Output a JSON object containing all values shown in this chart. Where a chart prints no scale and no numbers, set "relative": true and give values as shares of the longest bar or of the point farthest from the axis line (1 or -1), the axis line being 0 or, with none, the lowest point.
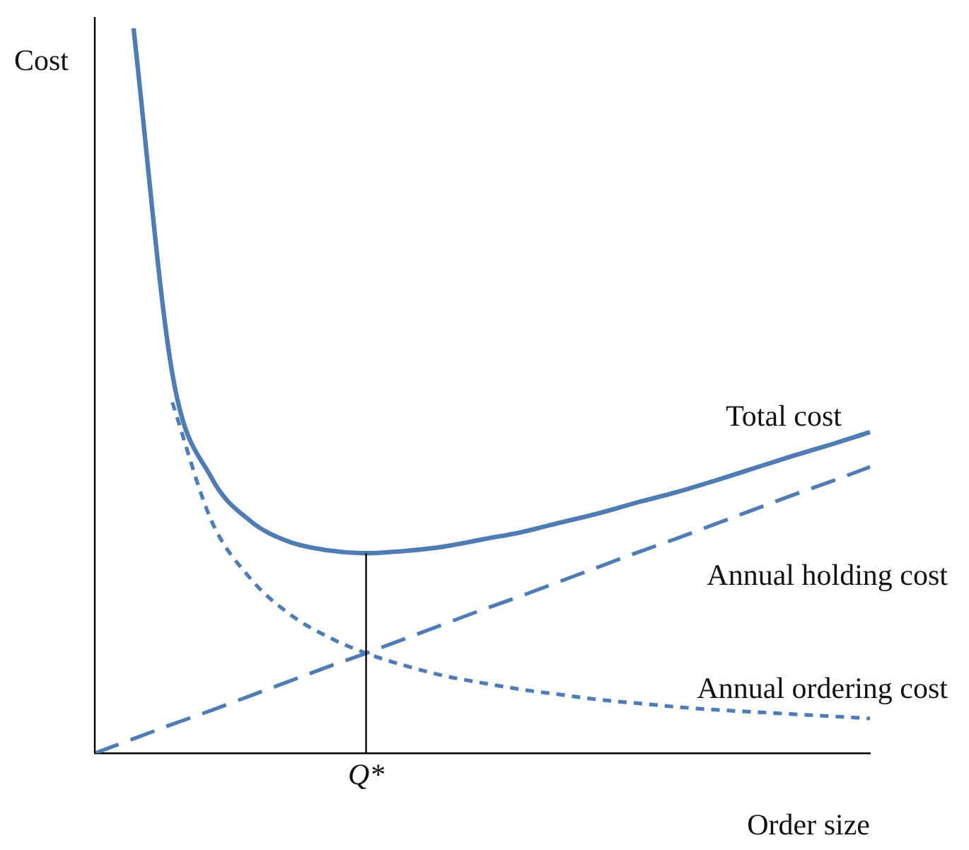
{
  "chart_data": {
    "type": "line",
    "relative": true,
    "xlabel": "Order size",
    "ylabel": "Cost",
    "categories": [
      null,
      null,
      null,
      null,
      null,
      null,
      null,
      null,
      null,
      null,
      null,
      null,
      null,
      null,
      null,
      null,
      null,
      null,
      null,
      null,
      null
    ],
    "series": [
      {
        "name": "Total cost",
        "color": "#4f7cb3",
        "line_style": "solid",
        "values": [
          null,
          1,
          0.524,
          0.381,
          0.321,
          0.292,
          0.28,
          0.276,
          0.279,
          0.285,
          0.295,
          0.305,
          0.318,
          0.331,
          0.346,
          0.36,
          0.376,
          0.393,
          0.41,
          0.426,
          0.443
        ]
      },
      {
        "name": "Annual holding cost",
        "color": "#4f7cb3",
        "line_style": "dashed",
        "values": [
          0,
          0.02,
          0.04,
          0.059,
          0.079,
          0.099,
          0.119,
          0.138,
          0.158,
          0.178,
          0.198,
          0.217,
          0.237,
          0.257,
          0.277,
          0.296,
          0.316,
          0.336,
          0.356,
          0.375,
          0.395
        ]
      },
      {
        "name": "Annual ordering cost",
        "color": "#4f7cb3",
        "line_style": "dotted",
        "values": [
          null,
          null,
          0.484,
          0.322,
          0.242,
          0.193,
          0.161,
          0.138,
          0.121,
          0.107,
          0.097,
          0.088,
          0.081,
          0.074,
          0.069,
          0.064,
          0.06,
          0.057,
          0.054,
          0.051,
          0.048
        ]
      }
    ],
    "ref_lines": [
      {
        "axis": "x",
        "value": "Q*",
        "color": "#000000"
      }
    ],
    "grid": false,
    "legend": false,
    "marker": "none"
  }
}
